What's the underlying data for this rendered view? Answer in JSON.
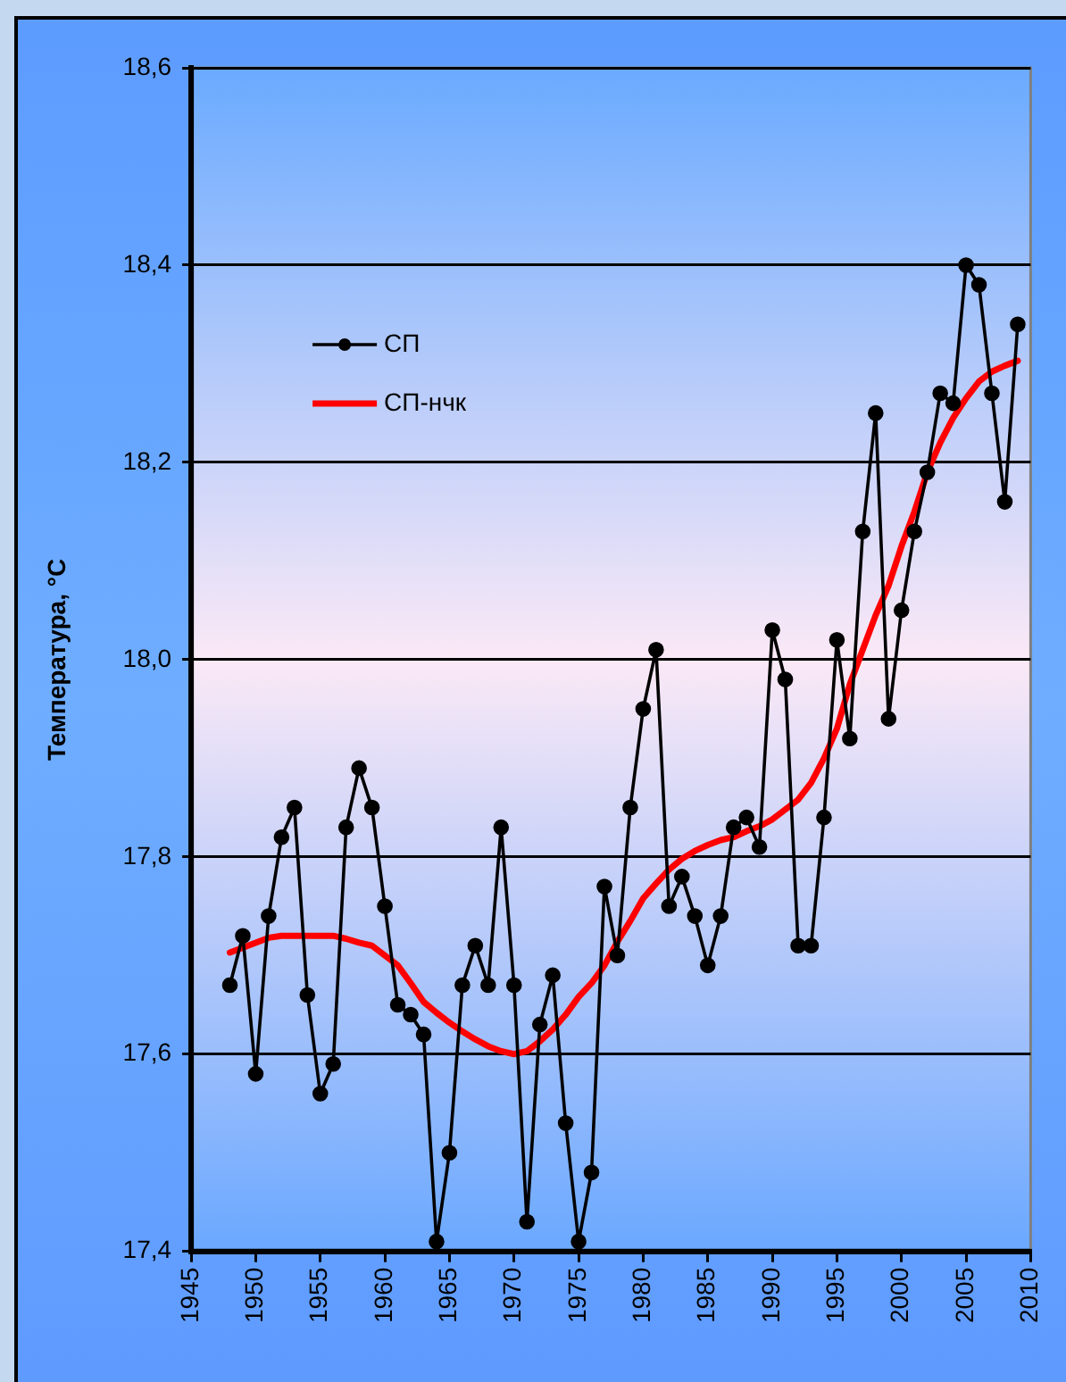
{
  "chart_data": {
    "type": "line",
    "ylabel": "Температура, °C",
    "x": [
      1948,
      1949,
      1950,
      1951,
      1952,
      1953,
      1954,
      1955,
      1956,
      1957,
      1958,
      1959,
      1960,
      1961,
      1962,
      1963,
      1964,
      1965,
      1966,
      1967,
      1968,
      1969,
      1970,
      1971,
      1972,
      1973,
      1974,
      1975,
      1976,
      1977,
      1978,
      1979,
      1980,
      1981,
      1982,
      1983,
      1984,
      1985,
      1986,
      1987,
      1988,
      1989,
      1990,
      1991,
      1992,
      1993,
      1994,
      1995,
      1996,
      1997,
      1998,
      1999,
      2000,
      2001,
      2002,
      2003,
      2004,
      2005,
      2006,
      2007,
      2008,
      2009
    ],
    "series": [
      {
        "name": "СП",
        "color": "#000000",
        "marker": "circle",
        "values": [
          17.67,
          17.72,
          17.58,
          17.74,
          17.82,
          17.85,
          17.66,
          17.56,
          17.59,
          17.83,
          17.89,
          17.85,
          17.75,
          17.65,
          17.64,
          17.62,
          17.41,
          17.5,
          17.67,
          17.71,
          17.67,
          17.83,
          17.67,
          17.43,
          17.63,
          17.68,
          17.53,
          17.41,
          17.48,
          17.77,
          17.7,
          17.85,
          17.95,
          18.01,
          17.75,
          17.78,
          17.74,
          17.69,
          17.74,
          17.83,
          17.84,
          17.81,
          18.03,
          17.98,
          17.71,
          17.71,
          17.84,
          18.02,
          17.92,
          18.13,
          18.25,
          17.94,
          18.05,
          18.13,
          18.19,
          18.27,
          18.26,
          18.4,
          18.38,
          18.27,
          18.16,
          18.34
        ]
      },
      {
        "name": "СП-нчк",
        "color": "#ff0000",
        "marker": "none",
        "values": [
          17.703,
          17.708,
          17.713,
          17.718,
          17.72,
          17.72,
          17.72,
          17.72,
          17.72,
          17.717,
          17.713,
          17.71,
          17.7,
          17.69,
          17.672,
          17.653,
          17.642,
          17.632,
          17.623,
          17.615,
          17.608,
          17.603,
          17.6,
          17.603,
          17.613,
          17.625,
          17.64,
          17.658,
          17.672,
          17.69,
          17.714,
          17.735,
          17.758,
          17.773,
          17.787,
          17.798,
          17.806,
          17.812,
          17.817,
          17.82,
          17.826,
          17.831,
          17.838,
          17.848,
          17.858,
          17.875,
          17.9,
          17.93,
          17.975,
          18.01,
          18.045,
          18.075,
          18.115,
          18.15,
          18.19,
          18.22,
          18.245,
          18.265,
          18.282,
          18.292,
          18.298,
          18.303
        ]
      }
    ],
    "xlim": [
      1945,
      2010
    ],
    "xticks": [
      1945,
      1950,
      1955,
      1960,
      1965,
      1970,
      1975,
      1980,
      1985,
      1990,
      1995,
      2000,
      2005,
      2010
    ],
    "ylim": [
      17.4,
      18.6
    ],
    "yticks": [
      {
        "value": 17.4,
        "label": "17,4"
      },
      {
        "value": 17.6,
        "label": "17,6"
      },
      {
        "value": 17.8,
        "label": "17,8"
      },
      {
        "value": 18.0,
        "label": "18,0"
      },
      {
        "value": 18.2,
        "label": "18,2"
      },
      {
        "value": 18.4,
        "label": "18,4"
      },
      {
        "value": 18.6,
        "label": "18,6"
      }
    ],
    "grid": "y",
    "legend": "top left",
    "line_style": "solid"
  }
}
